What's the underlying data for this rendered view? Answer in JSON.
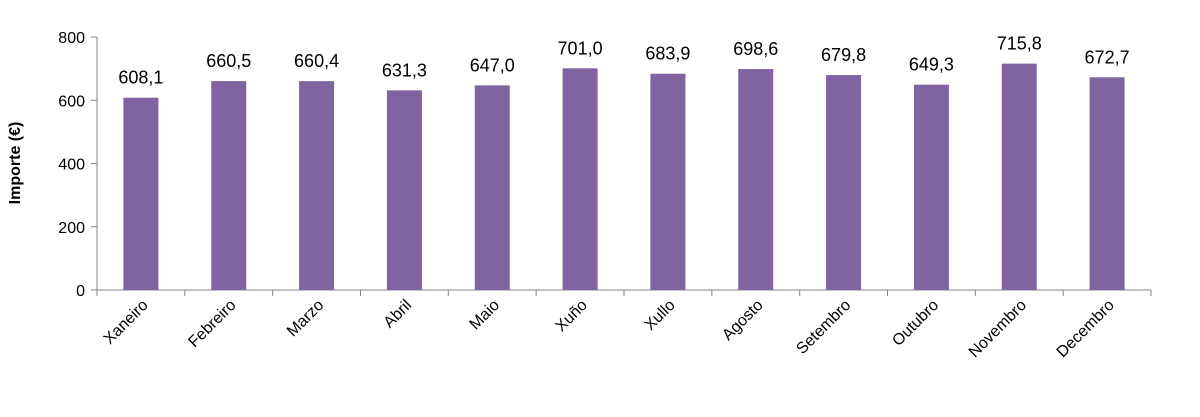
{
  "chart_data": {
    "type": "bar",
    "title": "",
    "xlabel": "",
    "ylabel": "Importe (€)",
    "ylim": [
      0,
      800
    ],
    "yticks": [
      0,
      200,
      400,
      600,
      800
    ],
    "grid": false,
    "legend": "none",
    "bar_color": "#8064A2",
    "categories": [
      "Xaneiro",
      "Febreiro",
      "Marzo",
      "Abril",
      "Maio",
      "Xuño",
      "Xullo",
      "Agosto",
      "Setembro",
      "Outubro",
      "Novembro",
      "Decembro"
    ],
    "values": [
      608.1,
      660.5,
      660.4,
      631.3,
      647.0,
      701.0,
      683.9,
      698.6,
      679.8,
      649.3,
      715.8,
      672.7
    ],
    "value_labels": [
      "608,1",
      "660,5",
      "660,4",
      "631,3",
      "647,0",
      "701,0",
      "683,9",
      "698,6",
      "679,8",
      "649,3",
      "715,8",
      "672,7"
    ]
  }
}
